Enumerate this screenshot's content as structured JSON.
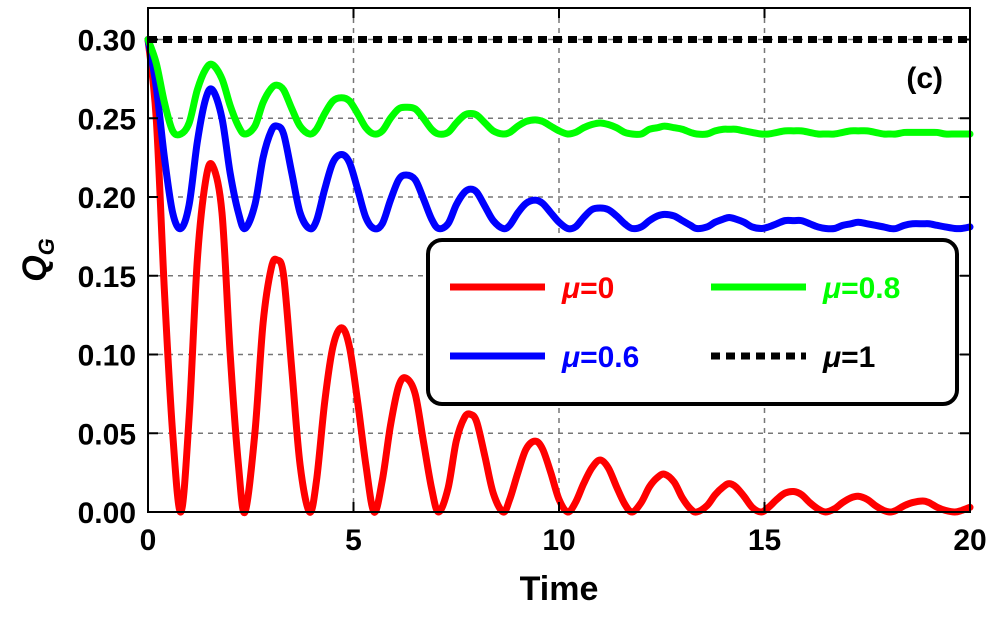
{
  "chart_data": {
    "type": "line",
    "panel_label": "(c)",
    "xlabel": "Time",
    "ylabel": {
      "main": "Q",
      "sub": "G"
    },
    "xlim": [
      0,
      20
    ],
    "ylim": [
      0,
      0.32
    ],
    "xticks": [
      0,
      5,
      10,
      15,
      20
    ],
    "xtick_labels": [
      "0",
      "5",
      "10",
      "15",
      "20"
    ],
    "yticks": [
      0.0,
      0.05,
      0.1,
      0.15,
      0.2,
      0.25,
      0.3
    ],
    "ytick_labels": [
      "0.00",
      "0.05",
      "0.10",
      "0.15",
      "0.20",
      "0.25",
      "0.30"
    ],
    "grid": true,
    "legend_position": "center-right",
    "series": [
      {
        "name": "μ=0",
        "mu_symbol": "μ",
        "mu_value": "=0",
        "color": "#ff0000",
        "style": "solid",
        "x": [
          0,
          0.2,
          0.4,
          0.6,
          0.8,
          1.0,
          1.2,
          1.4,
          1.57,
          1.8,
          2.0,
          2.2,
          2.36,
          2.6,
          2.8,
          3.0,
          3.14,
          3.3,
          3.5,
          3.7,
          3.93,
          4.1,
          4.3,
          4.5,
          4.71,
          4.9,
          5.1,
          5.3,
          5.5,
          5.7,
          5.9,
          6.1,
          6.28,
          6.5,
          6.7,
          6.9,
          7.07,
          7.3,
          7.5,
          7.7,
          7.85,
          8.0,
          8.2,
          8.4,
          8.64,
          8.8,
          9.0,
          9.2,
          9.42,
          9.6,
          9.8,
          10.0,
          10.21,
          10.4,
          10.6,
          10.8,
          11.0,
          11.2,
          11.4,
          11.6,
          11.78,
          12.0,
          12.2,
          12.4,
          12.57,
          12.8,
          13.0,
          13.2,
          13.35,
          13.6,
          13.8,
          14.0,
          14.14,
          14.3,
          14.5,
          14.7,
          14.92,
          15.1,
          15.3,
          15.5,
          15.71,
          15.9,
          16.1,
          16.3,
          16.49,
          16.7,
          16.9,
          17.1,
          17.28,
          17.5,
          17.7,
          17.9,
          18.06,
          18.2,
          18.4,
          18.6,
          18.85,
          19.0,
          19.2,
          19.4,
          19.63,
          19.8,
          20.0
        ],
        "values": [
          0.3,
          0.25,
          0.14,
          0.05,
          0.0,
          0.06,
          0.16,
          0.21,
          0.22,
          0.19,
          0.1,
          0.03,
          0.0,
          0.05,
          0.12,
          0.155,
          0.16,
          0.15,
          0.09,
          0.03,
          0.0,
          0.02,
          0.07,
          0.105,
          0.117,
          0.105,
          0.07,
          0.03,
          0.0,
          0.02,
          0.055,
          0.08,
          0.085,
          0.075,
          0.045,
          0.015,
          0.0,
          0.015,
          0.045,
          0.06,
          0.062,
          0.057,
          0.035,
          0.012,
          0.0,
          0.008,
          0.025,
          0.04,
          0.045,
          0.04,
          0.025,
          0.008,
          0.0,
          0.006,
          0.018,
          0.028,
          0.033,
          0.028,
          0.016,
          0.005,
          0.0,
          0.006,
          0.016,
          0.022,
          0.024,
          0.019,
          0.009,
          0.002,
          0.0,
          0.004,
          0.011,
          0.016,
          0.018,
          0.016,
          0.01,
          0.003,
          0.0,
          0.003,
          0.008,
          0.012,
          0.013,
          0.011,
          0.006,
          0.002,
          0.0,
          0.002,
          0.006,
          0.009,
          0.01,
          0.008,
          0.004,
          0.001,
          0.0,
          0.001,
          0.004,
          0.006,
          0.007,
          0.006,
          0.003,
          0.001,
          0.0,
          0.001,
          0.003
        ]
      },
      {
        "name": "μ=0.6",
        "mu_symbol": "μ",
        "mu_value": "=0.6",
        "color": "#0000ff",
        "style": "solid",
        "x": [
          0,
          0.2,
          0.4,
          0.6,
          0.8,
          1.0,
          1.2,
          1.4,
          1.57,
          1.8,
          2.0,
          2.2,
          2.36,
          2.6,
          2.8,
          3.0,
          3.14,
          3.3,
          3.5,
          3.7,
          3.93,
          4.1,
          4.3,
          4.5,
          4.71,
          4.9,
          5.1,
          5.3,
          5.5,
          5.7,
          5.9,
          6.1,
          6.28,
          6.5,
          6.7,
          6.9,
          7.07,
          7.3,
          7.5,
          7.7,
          7.85,
          8.0,
          8.2,
          8.4,
          8.64,
          8.8,
          9.0,
          9.2,
          9.42,
          9.6,
          9.8,
          10.0,
          10.21,
          10.4,
          10.6,
          10.8,
          11.0,
          11.2,
          11.4,
          11.6,
          11.78,
          12.0,
          12.2,
          12.4,
          12.57,
          12.8,
          13.0,
          13.2,
          13.35,
          13.6,
          13.8,
          14.0,
          14.14,
          14.3,
          14.5,
          14.7,
          14.92,
          15.1,
          15.3,
          15.5,
          15.71,
          15.9,
          16.1,
          16.3,
          16.49,
          16.7,
          16.9,
          17.1,
          17.28,
          17.5,
          17.7,
          17.9,
          18.06,
          18.2,
          18.4,
          18.6,
          18.85,
          19.0,
          19.2,
          19.4,
          19.63,
          19.8,
          20.0
        ],
        "values": [
          0.3,
          0.27,
          0.225,
          0.19,
          0.18,
          0.195,
          0.235,
          0.262,
          0.268,
          0.25,
          0.215,
          0.19,
          0.18,
          0.195,
          0.225,
          0.242,
          0.245,
          0.24,
          0.215,
          0.19,
          0.18,
          0.185,
          0.205,
          0.222,
          0.227,
          0.222,
          0.205,
          0.187,
          0.18,
          0.183,
          0.198,
          0.211,
          0.214,
          0.211,
          0.199,
          0.186,
          0.18,
          0.183,
          0.195,
          0.203,
          0.205,
          0.203,
          0.194,
          0.185,
          0.18,
          0.182,
          0.19,
          0.196,
          0.198,
          0.196,
          0.19,
          0.184,
          0.18,
          0.181,
          0.187,
          0.192,
          0.193,
          0.192,
          0.188,
          0.183,
          0.18,
          0.181,
          0.185,
          0.188,
          0.189,
          0.188,
          0.185,
          0.182,
          0.18,
          0.181,
          0.184,
          0.186,
          0.187,
          0.186,
          0.184,
          0.181,
          0.18,
          0.181,
          0.183,
          0.185,
          0.185,
          0.185,
          0.183,
          0.181,
          0.18,
          0.18,
          0.182,
          0.183,
          0.184,
          0.183,
          0.182,
          0.181,
          0.18,
          0.18,
          0.182,
          0.183,
          0.183,
          0.183,
          0.182,
          0.181,
          0.18,
          0.18,
          0.181
        ]
      },
      {
        "name": "μ=0.8",
        "mu_symbol": "μ",
        "mu_value": "=0.8",
        "color": "#00ff00",
        "style": "solid",
        "x": [
          0,
          0.2,
          0.4,
          0.6,
          0.8,
          1.0,
          1.2,
          1.4,
          1.57,
          1.8,
          2.0,
          2.2,
          2.36,
          2.6,
          2.8,
          3.0,
          3.14,
          3.3,
          3.5,
          3.7,
          3.93,
          4.1,
          4.3,
          4.5,
          4.71,
          4.9,
          5.1,
          5.3,
          5.5,
          5.7,
          5.9,
          6.1,
          6.28,
          6.5,
          6.7,
          6.9,
          7.07,
          7.3,
          7.5,
          7.7,
          7.85,
          8.0,
          8.2,
          8.4,
          8.64,
          8.8,
          9.0,
          9.2,
          9.42,
          9.6,
          9.8,
          10.0,
          10.21,
          10.4,
          10.6,
          10.8,
          11.0,
          11.2,
          11.4,
          11.6,
          11.78,
          12.0,
          12.2,
          12.4,
          12.57,
          12.8,
          13.0,
          13.2,
          13.35,
          13.6,
          13.8,
          14.0,
          14.14,
          14.3,
          14.5,
          14.7,
          14.92,
          15.1,
          15.3,
          15.5,
          15.71,
          15.9,
          16.1,
          16.3,
          16.49,
          16.7,
          16.9,
          17.1,
          17.28,
          17.5,
          17.7,
          17.9,
          18.06,
          18.2,
          18.4,
          18.6,
          18.85,
          19.0,
          19.2,
          19.4,
          19.63,
          19.8,
          20.0
        ],
        "values": [
          0.3,
          0.285,
          0.26,
          0.242,
          0.24,
          0.247,
          0.268,
          0.281,
          0.284,
          0.275,
          0.258,
          0.245,
          0.24,
          0.245,
          0.26,
          0.269,
          0.271,
          0.268,
          0.256,
          0.245,
          0.24,
          0.243,
          0.253,
          0.261,
          0.263,
          0.261,
          0.253,
          0.244,
          0.24,
          0.242,
          0.25,
          0.256,
          0.257,
          0.256,
          0.25,
          0.243,
          0.24,
          0.241,
          0.247,
          0.252,
          0.253,
          0.252,
          0.247,
          0.242,
          0.24,
          0.241,
          0.245,
          0.248,
          0.249,
          0.248,
          0.245,
          0.242,
          0.24,
          0.241,
          0.244,
          0.246,
          0.247,
          0.246,
          0.244,
          0.241,
          0.24,
          0.24,
          0.243,
          0.244,
          0.245,
          0.244,
          0.243,
          0.241,
          0.24,
          0.24,
          0.242,
          0.243,
          0.243,
          0.243,
          0.242,
          0.241,
          0.24,
          0.24,
          0.241,
          0.242,
          0.242,
          0.242,
          0.241,
          0.24,
          0.24,
          0.24,
          0.241,
          0.242,
          0.242,
          0.242,
          0.241,
          0.24,
          0.24,
          0.24,
          0.241,
          0.241,
          0.241,
          0.241,
          0.241,
          0.24,
          0.24,
          0.24,
          0.24
        ]
      },
      {
        "name": "μ=1",
        "mu_symbol": "μ",
        "mu_value": "=1",
        "color": "#000000",
        "style": "dashed",
        "x": [
          0,
          20
        ],
        "values": [
          0.3,
          0.3
        ]
      }
    ]
  }
}
